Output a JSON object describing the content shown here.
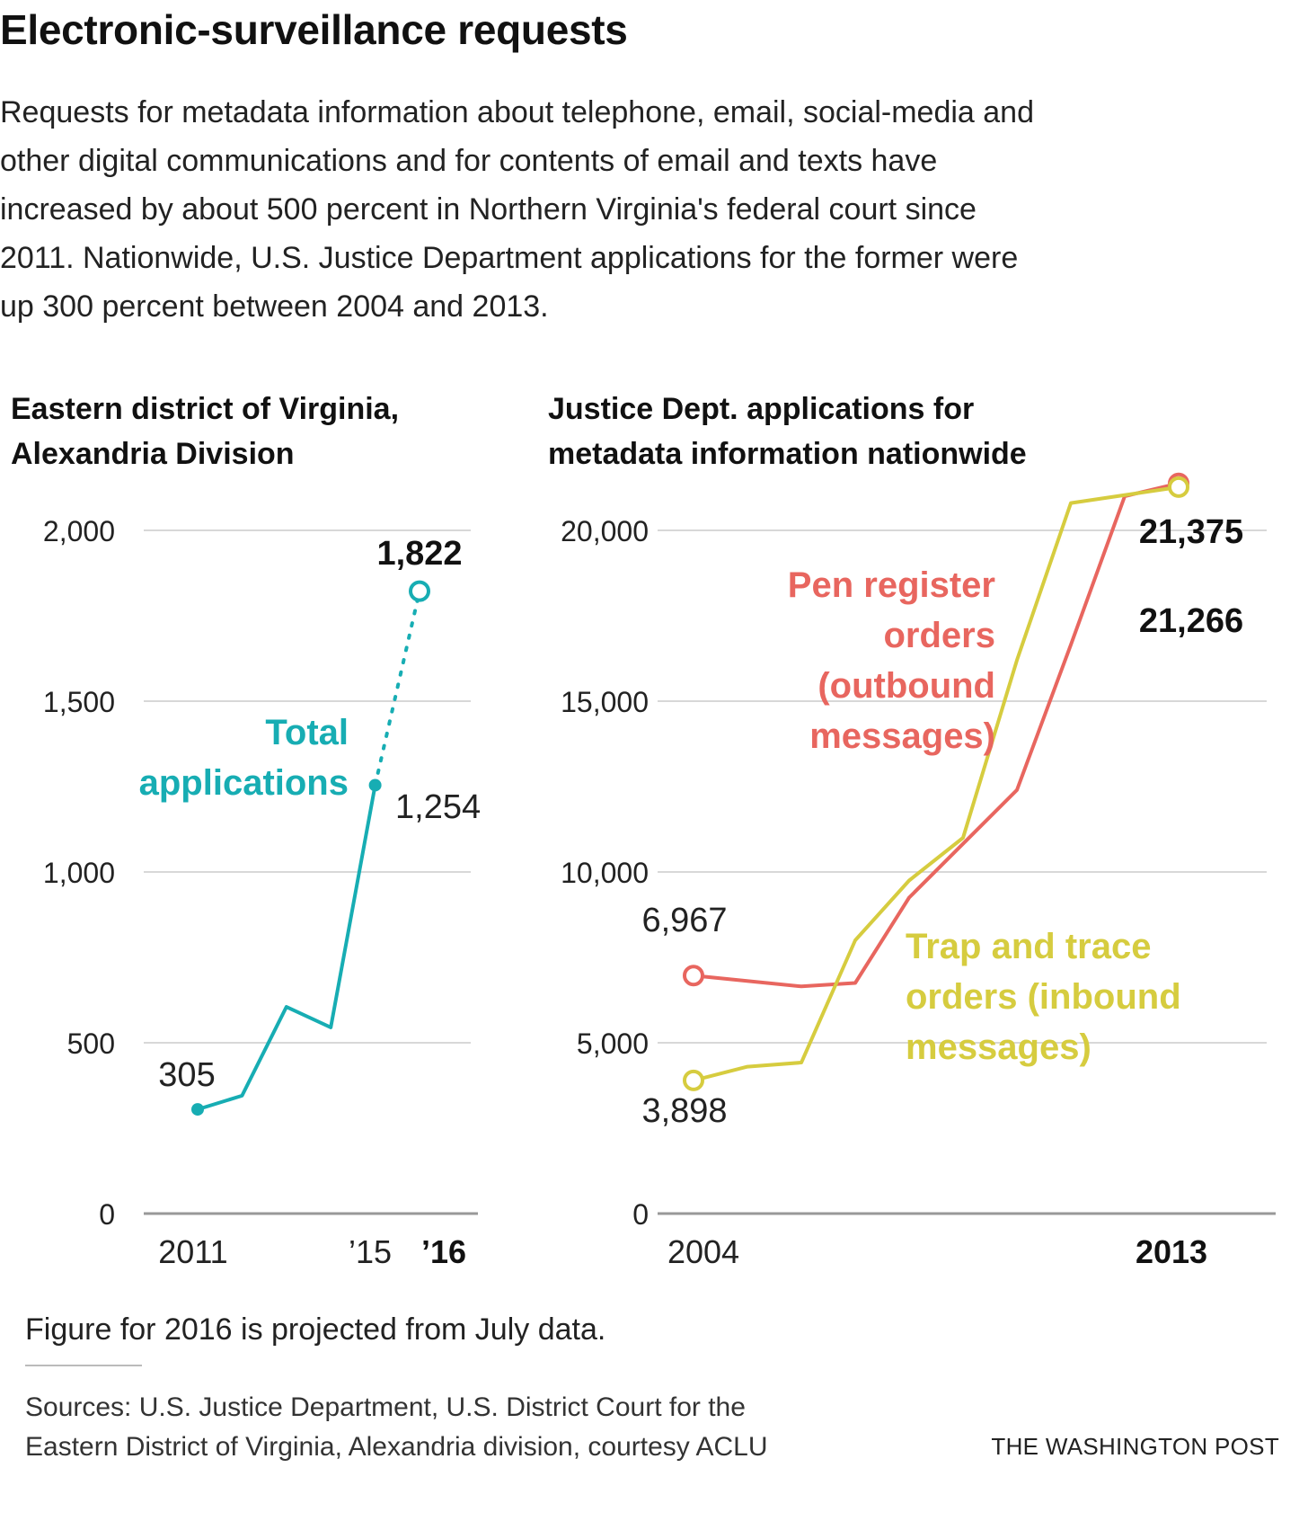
{
  "header": {
    "title": "Electronic-surveillance requests",
    "intro_lines": [
      "Requests for metadata information about telephone, email, social-media and",
      "other digital communications and for contents of email and texts have",
      "increased by about 500 percent in Northern Virginia's federal court since",
      "2011. Nationwide, U.S. Justice Department applications for the former were",
      "up 300 percent between 2004 and 2013."
    ]
  },
  "colors": {
    "teal": "#17adb3",
    "red": "#e8665f",
    "yellow": "#d6cc3f",
    "grid": "#cccccc",
    "axis": "#999999"
  },
  "chart_data": [
    {
      "type": "line",
      "title_lines": [
        "Eastern district of Virginia,",
        "Alexandria Division"
      ],
      "x": [
        2011,
        2012,
        2013,
        2014,
        2015,
        2016
      ],
      "series": [
        {
          "name": "Total applications",
          "label_lines": [
            "Total",
            "applications"
          ],
          "values": [
            305,
            345,
            605,
            545,
            1254,
            1822
          ],
          "projected_from_index": 4
        }
      ],
      "value_labels": {
        "start": "305",
        "mid": "1,254",
        "end": "1,822"
      },
      "y_ticks": [
        0,
        500,
        1000,
        1500,
        2000
      ],
      "y_tick_labels": [
        "0",
        "500",
        "1,000",
        "1,500",
        "2,000"
      ],
      "ylim": [
        0,
        2000
      ],
      "x_tick_labels": {
        "first": "2011",
        "mid": "’15",
        "last": "’16"
      }
    },
    {
      "type": "line",
      "title_lines": [
        "Justice Dept. applications for",
        "metadata information nationwide"
      ],
      "x": [
        2004,
        2005,
        2006,
        2007,
        2008,
        2009,
        2010,
        2011,
        2012,
        2013
      ],
      "series": [
        {
          "name": "Pen register orders (outbound messages)",
          "label_lines": [
            "Pen register",
            "orders",
            "(outbound",
            "messages)"
          ],
          "values": [
            6967,
            6650,
            6750,
            9250,
            12400,
            16650,
            21000,
            21375
          ],
          "x": [
            2004,
            2006,
            2007,
            2008,
            2010,
            2011,
            2012,
            2013
          ]
        },
        {
          "name": "Trap and trace orders (inbound messages)",
          "label_lines": [
            "Trap and trace",
            "orders (inbound",
            "messages)"
          ],
          "values": [
            3898,
            4300,
            4420,
            8000,
            9750,
            11000,
            16200,
            20800,
            21266
          ],
          "x": [
            2004,
            2005,
            2006,
            2007,
            2008,
            2009,
            2010,
            2011,
            2013
          ]
        }
      ],
      "value_labels": {
        "pen_start": "6,967",
        "trap_start": "3,898",
        "pen_end": "21,375",
        "trap_end": "21,266"
      },
      "y_ticks": [
        0,
        5000,
        10000,
        15000,
        20000
      ],
      "y_tick_labels": [
        "0",
        "5,000",
        "10,000",
        "15,000",
        "20,000"
      ],
      "ylim": [
        0,
        20000
      ],
      "x_tick_labels": {
        "first": "2004",
        "last": "2013"
      }
    }
  ],
  "footer": {
    "note": "Figure for 2016 is projected from July data.",
    "sources_lines": [
      "Sources: U.S. Justice Department, U.S. District Court for the",
      "Eastern District of Virginia, Alexandria division, courtesy ACLU"
    ],
    "credit": "THE WASHINGTON POST"
  }
}
